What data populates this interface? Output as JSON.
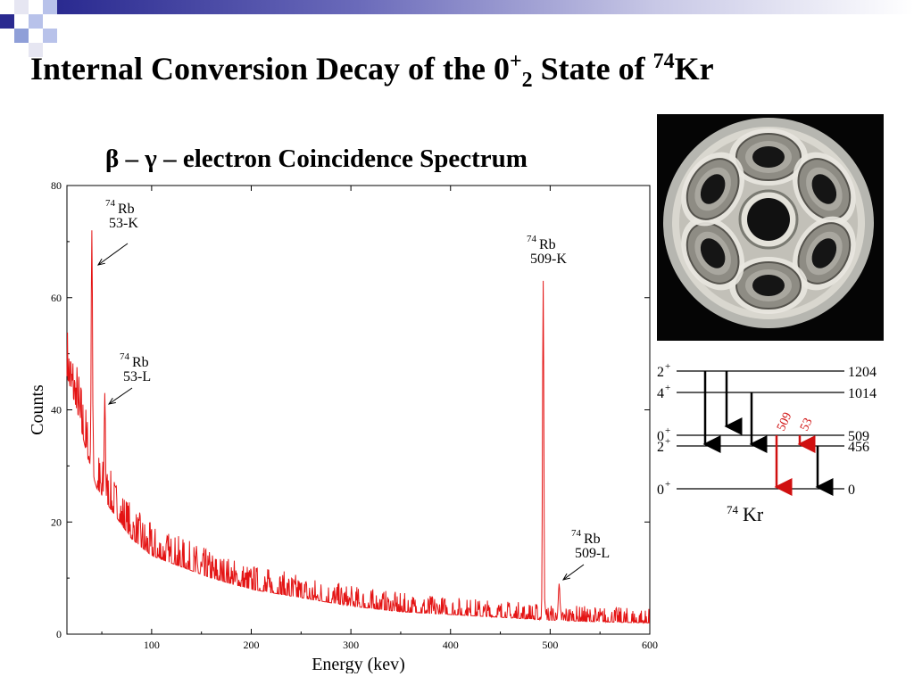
{
  "slide": {
    "title_main": "Internal Conversion Decay of the 0",
    "title_sup": "+",
    "title_sub": "2",
    "title_mid": " State of ",
    "title_iso_mass": "74",
    "title_iso_el": "Kr",
    "spectrum_title": "β – γ – electron Coincidence Spectrum"
  },
  "chart_data": {
    "type": "line",
    "xlabel": "Energy (kev)",
    "ylabel": "Counts",
    "xlim": [
      15,
      600
    ],
    "ylim": [
      0,
      80
    ],
    "xticks": [
      100,
      200,
      300,
      400,
      500,
      600
    ],
    "yticks": [
      0,
      20,
      40,
      60,
      80
    ],
    "line_color": "#e41414",
    "peaks": [
      {
        "x": 40,
        "y": 72
      },
      {
        "x": 53,
        "y": 43
      },
      {
        "x": 493,
        "y": 63
      },
      {
        "x": 509,
        "y": 9
      }
    ],
    "baseline_points": [
      {
        "x": 15,
        "y": 46
      },
      {
        "x": 25,
        "y": 40
      },
      {
        "x": 35,
        "y": 32
      },
      {
        "x": 45,
        "y": 26
      },
      {
        "x": 60,
        "y": 22
      },
      {
        "x": 80,
        "y": 17
      },
      {
        "x": 100,
        "y": 14
      },
      {
        "x": 130,
        "y": 12
      },
      {
        "x": 160,
        "y": 10
      },
      {
        "x": 200,
        "y": 8
      },
      {
        "x": 250,
        "y": 6.5
      },
      {
        "x": 300,
        "y": 5
      },
      {
        "x": 350,
        "y": 4
      },
      {
        "x": 400,
        "y": 3.5
      },
      {
        "x": 450,
        "y": 3
      },
      {
        "x": 500,
        "y": 2.5
      },
      {
        "x": 550,
        "y": 2.2
      },
      {
        "x": 600,
        "y": 2
      }
    ],
    "annotations": [
      {
        "mass": "74",
        "element": "Rb",
        "line": "53-K"
      },
      {
        "mass": "74",
        "element": "Rb",
        "line": "53-L"
      },
      {
        "mass": "74",
        "element": "Rb",
        "line": "509-K"
      },
      {
        "mass": "74",
        "element": "Rb",
        "line": "509-L"
      }
    ]
  },
  "level_scheme": {
    "levels": [
      {
        "spin": "2",
        "parity": "+",
        "energy": "1204"
      },
      {
        "spin": "4",
        "parity": "+",
        "energy": "1014"
      },
      {
        "spin": "0",
        "parity": "+",
        "energy": "509"
      },
      {
        "spin": "2",
        "parity": "+",
        "energy": "456"
      },
      {
        "spin": "0",
        "parity": "+",
        "energy": "0"
      }
    ],
    "transitions_highlighted": [
      "509",
      "53"
    ],
    "nucleus_mass": "74",
    "nucleus_symbol": "Kr",
    "highlight_color": "#d01010",
    "black_color": "#000000"
  },
  "colors": {
    "deco_navy": "#1a1a7a",
    "deco_light": "#8f9fd8"
  }
}
